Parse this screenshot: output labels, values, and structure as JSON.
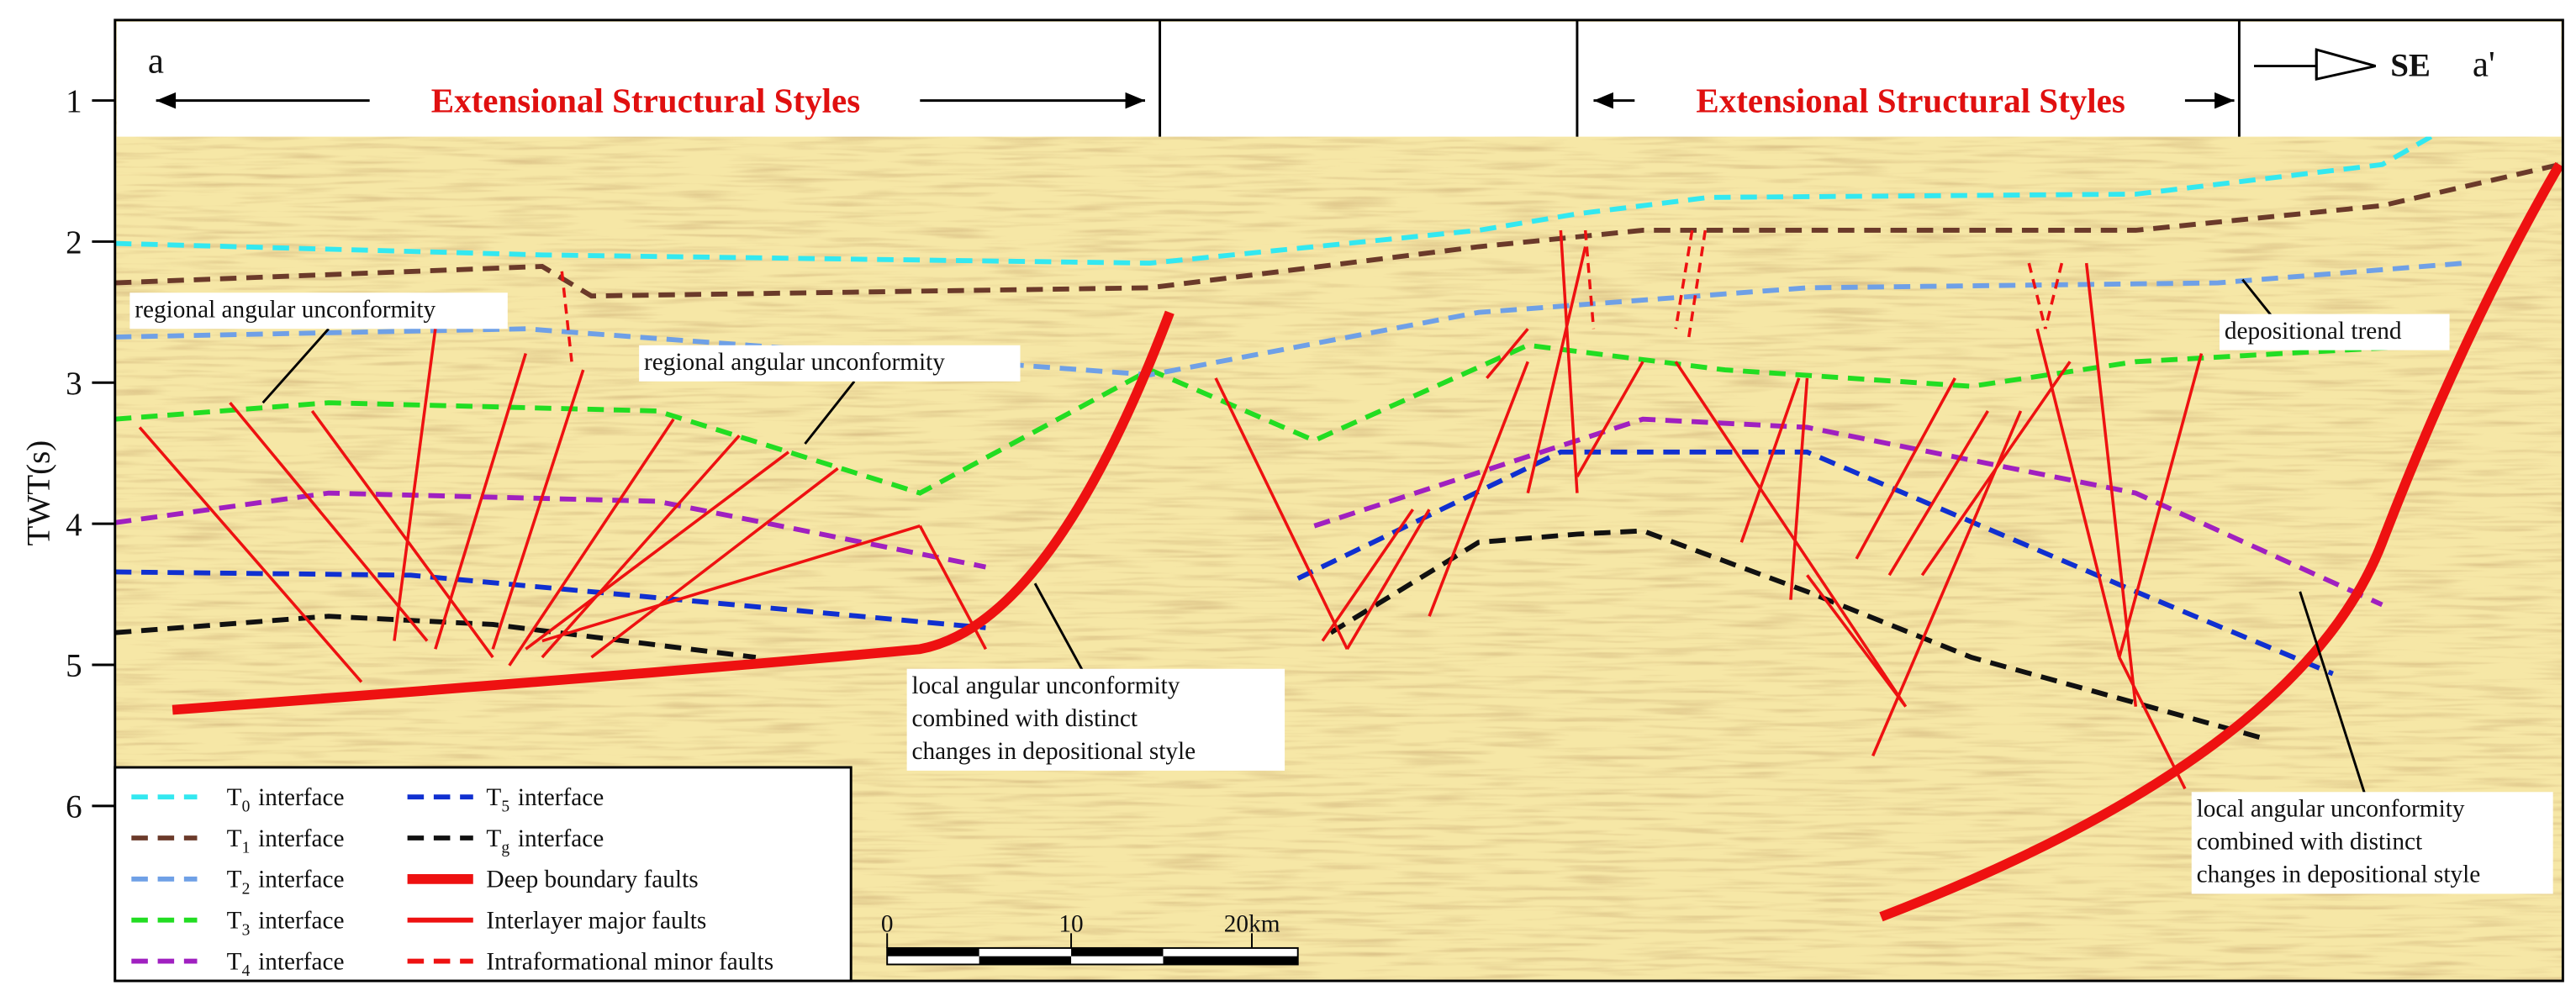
{
  "section": {
    "start": "a",
    "end": "a'",
    "direction": "SE",
    "styles": [
      "Extensional Structural Styles",
      "Extensional Structural Styles"
    ],
    "axis": {
      "label": "TWT(s)",
      "lim": [
        0.43,
        7.24
      ],
      "ticks": [
        1,
        2,
        3,
        4,
        5,
        6
      ]
    },
    "annotations": [
      {
        "lines": [
          "regional angular unconformity"
        ]
      },
      {
        "lines": [
          "regional angular unconformity"
        ]
      },
      {
        "lines": [
          "depositional trend"
        ]
      },
      {
        "lines": [
          "local angular unconformity",
          "combined with distinct",
          "changes in depositional style"
        ]
      },
      {
        "lines": [
          "local angular unconformity",
          "combined with distinct",
          "changes in depositional style"
        ]
      }
    ],
    "legend": [
      {
        "name": "T",
        "sub": "0",
        "label": "interface",
        "color": "#33e8f0",
        "style": "dashed"
      },
      {
        "name": "T",
        "sub": "1",
        "label": "interface",
        "color": "#6b3a2a",
        "style": "dashed"
      },
      {
        "name": "T",
        "sub": "2",
        "label": "interface",
        "color": "#6fa0e6",
        "style": "dashed"
      },
      {
        "name": "T",
        "sub": "3",
        "label": "interface",
        "color": "#22dd22",
        "style": "dashed"
      },
      {
        "name": "T",
        "sub": "4",
        "label": "interface",
        "color": "#a020c0",
        "style": "dashed"
      },
      {
        "name": "T",
        "sub": "5",
        "label": "interface",
        "color": "#1030d0",
        "style": "dashed"
      },
      {
        "name": "T",
        "sub": "g",
        "label": "interface",
        "color": "#111111",
        "style": "dashed"
      },
      {
        "label": "Deep boundary faults",
        "color": "#ee1111",
        "style": "thick"
      },
      {
        "label": "Interlayer major faults",
        "color": "#ee1111",
        "style": "solid"
      },
      {
        "label": "Intraformational minor faults",
        "color": "#ee1111",
        "style": "dashed"
      }
    ],
    "scale_bar": [
      "0",
      "10",
      "20km"
    ]
  }
}
